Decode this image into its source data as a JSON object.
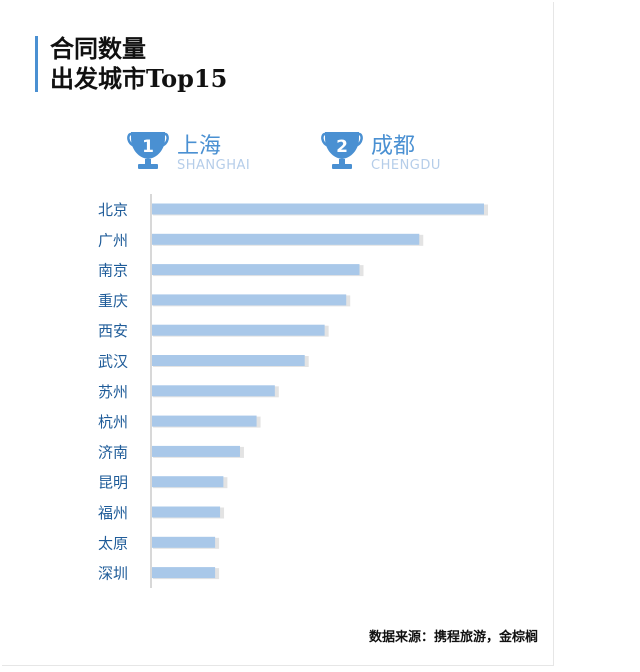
{
  "title": {
    "line1": "合同数量",
    "line2": "出发城市Top15"
  },
  "rankings": [
    {
      "rank": "1",
      "city": "上海",
      "pinyin": "SHANGHAI"
    },
    {
      "rank": "2",
      "city": "成都",
      "pinyin": "CHENGDU"
    }
  ],
  "colors": {
    "bar": "#a9c8e9",
    "accent": "#4a90d2",
    "label": "#1f5c99",
    "pinyin": "#b5cde9"
  },
  "chart_data": {
    "type": "bar",
    "orientation": "horizontal",
    "categories": [
      "北京",
      "广州",
      "南京",
      "重庆",
      "西安",
      "武汉",
      "苏州",
      "杭州",
      "济南",
      "昆明",
      "福州",
      "太原",
      "深圳"
    ],
    "values": [
      100,
      80.5,
      62.5,
      58.5,
      52,
      46,
      37,
      31.5,
      26.5,
      21.5,
      20.5,
      19,
      19
    ],
    "xlim": [
      0,
      100
    ],
    "grid": false,
    "legend": "none"
  },
  "source": "数据来源：携程旅游，金棕榈"
}
